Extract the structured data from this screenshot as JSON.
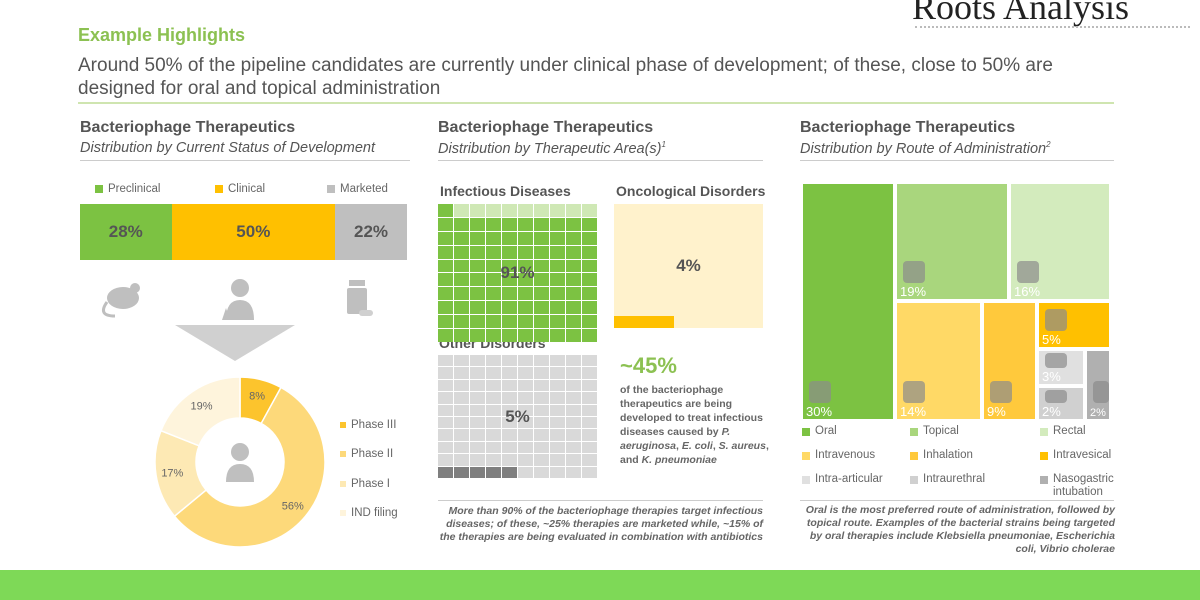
{
  "header": {
    "logo": "Roots Analysis",
    "highlight": "Example Highlights",
    "summary": "Around 50% of the pipeline candidates are currently under clinical phase of development; of these, close to 50% are designed for oral and topical administration"
  },
  "colors": {
    "accent": "#8cc152",
    "green": "#7cc242",
    "yellow": "#ffc000",
    "gray": "#bfbfbf",
    "bottom_bar": "#7ed957"
  },
  "chart_data": [
    {
      "type": "bar",
      "orientation": "stacked-horizontal",
      "title": "Bacteriophage Therapeutics",
      "subtitle": "Distribution by Current Status of Development",
      "categories": [
        "Preclinical",
        "Clinical",
        "Marketed"
      ],
      "values": [
        28,
        50,
        22
      ],
      "labels": [
        "28%",
        "50%",
        "22%"
      ],
      "colors": [
        "#7cc242",
        "#ffc000",
        "#bfbfbf"
      ],
      "legend": "top",
      "icons": [
        "mouse-icon",
        "doctor-icon",
        "medicine-bottle-icon"
      ]
    },
    {
      "type": "pie",
      "variant": "donut",
      "categories": [
        "Phase III",
        "Phase II",
        "Phase I",
        "IND filing"
      ],
      "values": [
        8,
        56,
        17,
        19
      ],
      "labels": [
        "8%",
        "56%",
        "17%",
        "19%"
      ],
      "colors": [
        "#fcc42d",
        "#fdd97a",
        "#fde9b4",
        "#fef4dc"
      ],
      "legend": "right",
      "center_icon": "scientist-icon"
    },
    {
      "type": "waffle",
      "title": "Bacteriophage Therapeutics",
      "subtitle": "Distribution by Therapeutic Area(s)",
      "subtitle_sup": "1",
      "panels": [
        {
          "name": "Infectious Diseases",
          "value": 91,
          "label": "91%",
          "color": "#7cc242",
          "empty": "#cfe8b5"
        },
        {
          "name": "Oncological Disorders",
          "value": 4,
          "label": "4%",
          "color": "#ffc000",
          "empty": "#fff2cc"
        },
        {
          "name": "Other Disorders",
          "value": 5,
          "label": "5%",
          "color": "#7f7f7f",
          "empty": "#d9d9d9"
        }
      ],
      "callout": {
        "value": "~45%",
        "text_parts": [
          "of the bacteriophage therapeutics are being developed to treat infectious diseases caused by ",
          "P. aeruginosa",
          ", ",
          "E. coli",
          ", ",
          "S. aureus",
          ", and ",
          "K. pneumoniae"
        ]
      },
      "note": "More than 90% of the bacteriophage therapies target infectious diseases; of these, ~25% therapies are marketed while, ~15% of the therapies are being evaluated in combination with antibiotics"
    },
    {
      "type": "treemap",
      "title": "Bacteriophage Therapeutics",
      "subtitle": "Distribution by Route of Administration",
      "subtitle_sup": "2",
      "items": [
        {
          "name": "Oral",
          "value": 30,
          "label": "30%",
          "color": "#7cc242",
          "icon": "stomach-icon"
        },
        {
          "name": "Topical",
          "value": 19,
          "label": "19%",
          "color": "#a9d67d",
          "icon": "ointment-tube-icon"
        },
        {
          "name": "Rectal",
          "value": 16,
          "label": "16%",
          "color": "#d3ebbd",
          "icon": "intestine-icon"
        },
        {
          "name": "Intravenous",
          "value": 14,
          "label": "14%",
          "color": "#ffd966",
          "icon": "syringe-icon"
        },
        {
          "name": "Inhalation",
          "value": 9,
          "label": "9%",
          "color": "#ffc93c",
          "icon": "nose-icon"
        },
        {
          "name": "Intravesical",
          "value": 5,
          "label": "5%",
          "color": "#ffc000",
          "icon": "kidney-icon"
        },
        {
          "name": "Intra-articular",
          "value": 3,
          "label": "3%",
          "color": "#e0e0e0",
          "icon": "joint-icon"
        },
        {
          "name": "Intraurethral",
          "value": 2,
          "label": "2%",
          "color": "#d0d0d0",
          "icon": "kidney-icon"
        },
        {
          "name": "Nasogastric intubation",
          "value": 2,
          "label": "2%",
          "color": "#b0b0b0",
          "icon": "tube-icon"
        }
      ],
      "legend": "bottom",
      "note": "Oral is the most preferred route of administration, followed by topical route. Examples of the bacterial strains being targeted by oral therapies include Klebsiella pneumoniae, Escherichia coli, Vibrio cholerae"
    }
  ]
}
